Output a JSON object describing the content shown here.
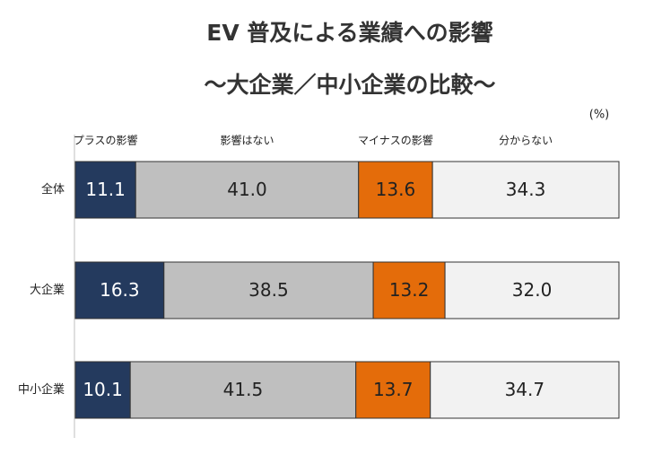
{
  "chart_data": {
    "type": "stacked-bar-horizontal",
    "title": "EV 普及による業績への影響",
    "subtitle": "～大企業／中小企業の比較～",
    "unit_label": "(%)",
    "categories": [
      "全体",
      "大企業",
      "中小企業"
    ],
    "xlim": [
      0,
      100
    ],
    "series": [
      {
        "name": "プラスの影響",
        "color": "#243a5e",
        "values": [
          11.1,
          16.3,
          10.1
        ]
      },
      {
        "name": "影響はない",
        "color": "#bfbfbf",
        "values": [
          41.0,
          38.5,
          41.5
        ],
        "value_labels": [
          "41.0",
          "38.5",
          "41.5"
        ]
      },
      {
        "name": "マイナスの影響",
        "color": "#e46c0a",
        "values": [
          13.6,
          13.2,
          13.7
        ]
      },
      {
        "name": "分からない",
        "color": "#f2f2f2",
        "values": [
          34.3,
          32.0,
          34.7
        ],
        "value_labels": [
          "34.3",
          "32.0",
          "34.7"
        ]
      }
    ]
  }
}
